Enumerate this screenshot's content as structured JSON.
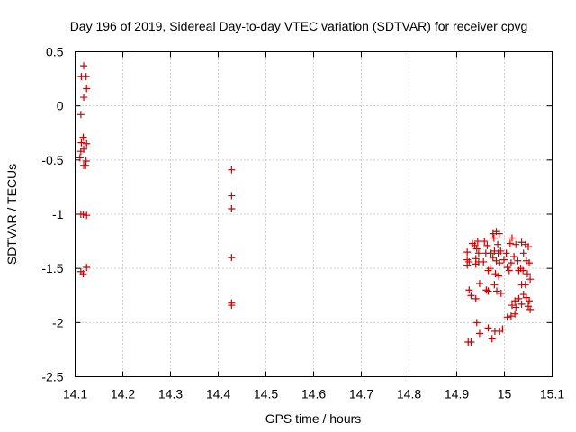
{
  "chart_data": {
    "type": "scatter",
    "title": "Day 196 of 2019, Sidereal Day-to-day VTEC variation (SDTVAR) for receiver cpvg",
    "xlabel": "GPS time / hours",
    "ylabel": "SDTVAR / TECUs",
    "xlim": [
      14.1,
      15.1
    ],
    "ylim": [
      -2.5,
      0.5
    ],
    "grid": true,
    "x_ticks": [
      "14.1",
      "14.2",
      "14.3",
      "14.4",
      "14.5",
      "14.6",
      "14.7",
      "14.8",
      "14.9",
      "15",
      "15.1"
    ],
    "y_ticks": [
      "0.5",
      "0",
      "-0.5",
      "-1",
      "-1.5",
      "-2",
      "-2.5"
    ],
    "marker": "+",
    "color": "#cc0000",
    "series": [
      {
        "name": "SDTVAR",
        "points": [
          [
            14.118,
            0.37
          ],
          [
            14.113,
            0.27
          ],
          [
            14.123,
            0.27
          ],
          [
            14.124,
            0.16
          ],
          [
            14.118,
            0.08
          ],
          [
            14.112,
            -0.08
          ],
          [
            14.117,
            -0.29
          ],
          [
            14.113,
            -0.34
          ],
          [
            14.124,
            -0.35
          ],
          [
            14.118,
            -0.4
          ],
          [
            14.112,
            -0.42
          ],
          [
            14.11,
            -0.48
          ],
          [
            14.123,
            -0.51
          ],
          [
            14.118,
            -0.55
          ],
          [
            14.122,
            -0.55
          ],
          [
            14.112,
            -1.0
          ],
          [
            14.117,
            -1.0
          ],
          [
            14.124,
            -1.01
          ],
          [
            14.112,
            -1.53
          ],
          [
            14.117,
            -1.55
          ],
          [
            14.124,
            -1.49
          ],
          [
            14.428,
            -0.59
          ],
          [
            14.428,
            -0.83
          ],
          [
            14.428,
            -0.95
          ],
          [
            14.428,
            -1.4
          ],
          [
            14.428,
            -1.82
          ],
          [
            14.428,
            -1.84
          ],
          [
            14.922,
            -1.35
          ],
          [
            14.922,
            -1.42
          ],
          [
            14.926,
            -1.44
          ],
          [
            14.922,
            -1.47
          ],
          [
            14.933,
            -1.27
          ],
          [
            14.938,
            -1.29
          ],
          [
            14.944,
            -1.25
          ],
          [
            14.942,
            -1.32
          ],
          [
            14.946,
            -1.36
          ],
          [
            14.94,
            -1.41
          ],
          [
            14.946,
            -1.44
          ],
          [
            14.94,
            -1.46
          ],
          [
            14.926,
            -1.7
          ],
          [
            14.93,
            -1.75
          ],
          [
            14.94,
            -1.78
          ],
          [
            14.948,
            -1.64
          ],
          [
            14.958,
            -1.25
          ],
          [
            14.964,
            -1.29
          ],
          [
            14.961,
            -1.36
          ],
          [
            14.956,
            -1.44
          ],
          [
            14.966,
            -1.52
          ],
          [
            14.97,
            -1.5
          ],
          [
            14.962,
            -1.7
          ],
          [
            14.966,
            -1.71
          ],
          [
            14.976,
            -1.18
          ],
          [
            14.983,
            -1.16
          ],
          [
            14.989,
            -1.18
          ],
          [
            14.978,
            -1.22
          ],
          [
            14.986,
            -1.28
          ],
          [
            14.972,
            -1.36
          ],
          [
            14.979,
            -1.34
          ],
          [
            14.987,
            -1.36
          ],
          [
            14.992,
            -1.34
          ],
          [
            14.976,
            -1.4
          ],
          [
            14.983,
            -1.43
          ],
          [
            14.99,
            -1.45
          ],
          [
            14.981,
            -1.55
          ],
          [
            14.988,
            -1.57
          ],
          [
            14.979,
            -1.65
          ],
          [
            14.984,
            -1.71
          ],
          [
            14.993,
            -1.73
          ],
          [
            14.999,
            -1.42
          ],
          [
            15.004,
            -1.36
          ],
          [
            15.006,
            -1.49
          ],
          [
            15.01,
            -1.52
          ],
          [
            15.014,
            -1.45
          ],
          [
            15.012,
            -1.27
          ],
          [
            15.016,
            -1.22
          ],
          [
            15.024,
            -1.28
          ],
          [
            15.02,
            -1.39
          ],
          [
            15.028,
            -1.43
          ],
          [
            15.03,
            -1.52
          ],
          [
            15.034,
            -1.5
          ],
          [
            15.036,
            -1.26
          ],
          [
            15.044,
            -1.28
          ],
          [
            15.05,
            -1.3
          ],
          [
            15.04,
            -1.36
          ],
          [
            15.046,
            -1.43
          ],
          [
            15.052,
            -1.45
          ],
          [
            15.039,
            -1.52
          ],
          [
            15.048,
            -1.55
          ],
          [
            15.054,
            -1.6
          ],
          [
            15.044,
            -1.65
          ],
          [
            15.036,
            -1.65
          ],
          [
            15.04,
            -1.74
          ],
          [
            15.046,
            -1.77
          ],
          [
            15.052,
            -1.8
          ],
          [
            15.036,
            -1.83
          ],
          [
            15.05,
            -1.85
          ],
          [
            15.054,
            -1.88
          ],
          [
            15.03,
            -1.78
          ],
          [
            15.022,
            -1.8
          ],
          [
            15.016,
            -1.84
          ],
          [
            15.024,
            -1.86
          ],
          [
            15.014,
            -1.94
          ],
          [
            15.022,
            -1.92
          ],
          [
            14.924,
            -2.18
          ],
          [
            14.93,
            -2.18
          ],
          [
            14.942,
            -2.0
          ],
          [
            14.948,
            -2.1
          ],
          [
            14.966,
            -2.05
          ],
          [
            14.974,
            -2.15
          ],
          [
            14.98,
            -2.08
          ],
          [
            14.99,
            -2.08
          ],
          [
            14.996,
            -2.06
          ],
          [
            15.006,
            -1.95
          ]
        ]
      }
    ]
  }
}
